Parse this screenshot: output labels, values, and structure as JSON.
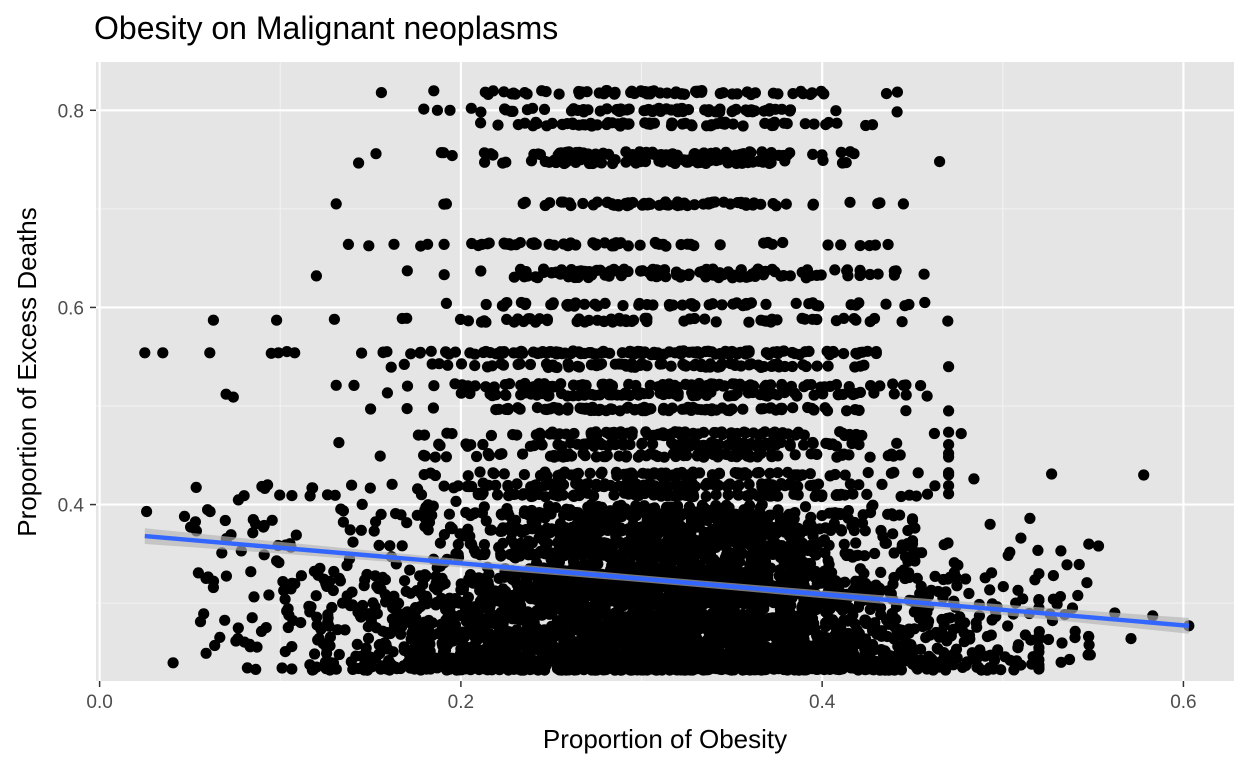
{
  "chart_data": {
    "type": "scatter",
    "title": "Obesity on Malignant neoplasms",
    "xlabel": "Proportion of Obesity",
    "ylabel": "Proportion of Excess Deaths",
    "xlim": [
      -0.002,
      0.628
    ],
    "ylim": [
      0.221,
      0.849
    ],
    "x_ticks": [
      0.0,
      0.2,
      0.4,
      0.6
    ],
    "x_tick_labels": [
      "0.0",
      "0.2",
      "0.4",
      "0.6"
    ],
    "y_ticks": [
      0.4,
      0.6,
      0.8
    ],
    "y_tick_labels": [
      "0.4",
      "0.6",
      "0.8"
    ],
    "grid": true,
    "panel_background": "#e5e5e5",
    "point_color": "#000000",
    "trend_line": {
      "method": "linear",
      "color": "#3366ff",
      "x": [
        0.025,
        0.603
      ],
      "y": [
        0.368,
        0.277
      ],
      "confidence_band": true,
      "band_color": "#b3b3b3"
    },
    "y_levels": [
      0.818,
      0.8,
      0.786,
      0.756,
      0.748,
      0.705,
      0.664,
      0.637,
      0.632,
      0.603,
      0.587,
      0.554,
      0.541,
      0.521,
      0.512,
      0.497,
      0.472,
      0.461,
      0.45,
      0.431,
      0.42,
      0.41,
      0.39,
      0.375,
      0.36,
      0.35
    ],
    "highlight_points": [
      {
        "x": 0.025,
        "y": 0.554
      },
      {
        "x": 0.035,
        "y": 0.554
      },
      {
        "x": 0.026,
        "y": 0.393
      },
      {
        "x": 0.047,
        "y": 0.388
      },
      {
        "x": 0.063,
        "y": 0.587
      },
      {
        "x": 0.061,
        "y": 0.554
      },
      {
        "x": 0.07,
        "y": 0.512
      },
      {
        "x": 0.074,
        "y": 0.509
      },
      {
        "x": 0.08,
        "y": 0.409
      },
      {
        "x": 0.093,
        "y": 0.42
      },
      {
        "x": 0.099,
        "y": 0.554
      },
      {
        "x": 0.098,
        "y": 0.587
      },
      {
        "x": 0.108,
        "y": 0.554
      },
      {
        "x": 0.12,
        "y": 0.632
      },
      {
        "x": 0.131,
        "y": 0.705
      },
      {
        "x": 0.131,
        "y": 0.521
      },
      {
        "x": 0.15,
        "y": 0.497
      },
      {
        "x": 0.153,
        "y": 0.756
      },
      {
        "x": 0.156,
        "y": 0.818
      },
      {
        "x": 0.163,
        "y": 0.664
      },
      {
        "x": 0.187,
        "y": 0.8
      },
      {
        "x": 0.194,
        "y": 0.8
      },
      {
        "x": 0.192,
        "y": 0.705
      },
      {
        "x": 0.211,
        "y": 0.637
      },
      {
        "x": 0.214,
        "y": 0.603
      },
      {
        "x": 0.226,
        "y": 0.664
      },
      {
        "x": 0.147,
        "y": 0.234
      },
      {
        "x": 0.177,
        "y": 0.24
      },
      {
        "x": 0.19,
        "y": 0.241
      },
      {
        "x": 0.445,
        "y": 0.705
      },
      {
        "x": 0.448,
        "y": 0.603
      },
      {
        "x": 0.445,
        "y": 0.521
      },
      {
        "x": 0.465,
        "y": 0.748
      },
      {
        "x": 0.477,
        "y": 0.472
      },
      {
        "x": 0.484,
        "y": 0.426
      },
      {
        "x": 0.493,
        "y": 0.38
      },
      {
        "x": 0.51,
        "y": 0.366
      },
      {
        "x": 0.515,
        "y": 0.386
      },
      {
        "x": 0.527,
        "y": 0.431
      },
      {
        "x": 0.528,
        "y": 0.304
      },
      {
        "x": 0.54,
        "y": 0.265
      },
      {
        "x": 0.553,
        "y": 0.358
      },
      {
        "x": 0.562,
        "y": 0.29
      },
      {
        "x": 0.571,
        "y": 0.264
      },
      {
        "x": 0.578,
        "y": 0.43
      },
      {
        "x": 0.583,
        "y": 0.287
      },
      {
        "x": 0.603,
        "y": 0.277
      }
    ]
  }
}
